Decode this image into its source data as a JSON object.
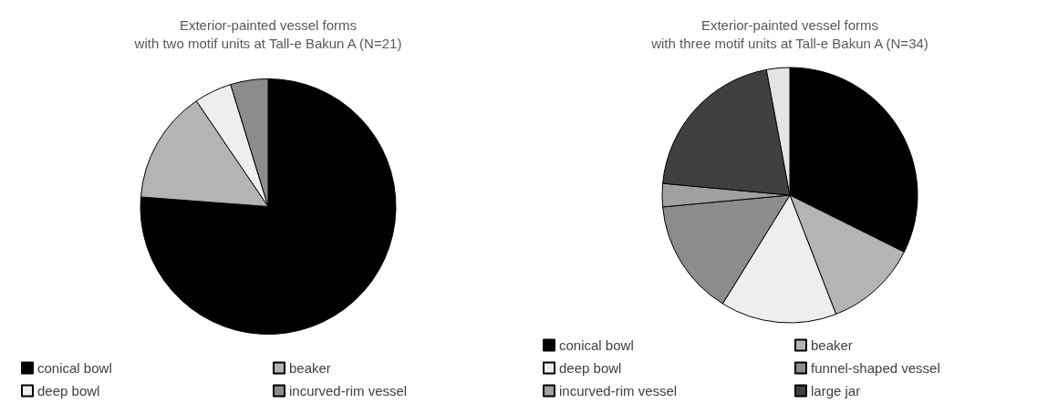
{
  "chart_data": [
    {
      "type": "pie",
      "title": "Exterior-painted vessel forms\nwith two motif units at Tall-e Bakun A (N=21)",
      "categories": [
        "conical bowl",
        "beaker",
        "deep bowl",
        "incurved-rim vessel"
      ],
      "values": [
        76.2,
        14.3,
        4.75,
        4.75
      ],
      "colors": [
        "#000000",
        "#b4b4b4",
        "#eeeeee",
        "#8c8c8c"
      ],
      "legend": "bottom"
    },
    {
      "type": "pie",
      "title": "Exterior-painted vessel forms\nwith three motif units at Tall-e Bakun A (N=34)",
      "categories": [
        "conical bowl",
        "beaker",
        "deep bowl",
        "funnel-shaped vessel",
        "incurved-rim vessel",
        "large jar",
        null
      ],
      "values": [
        32.35,
        11.76,
        14.71,
        14.71,
        2.94,
        20.59,
        2.94
      ],
      "colors": [
        "#000000",
        "#b4b4b4",
        "#eeeeee",
        "#8c8c8c",
        "#a0a0a0",
        "#404040",
        "#e4e4e4"
      ],
      "legend": "bottom"
    }
  ]
}
